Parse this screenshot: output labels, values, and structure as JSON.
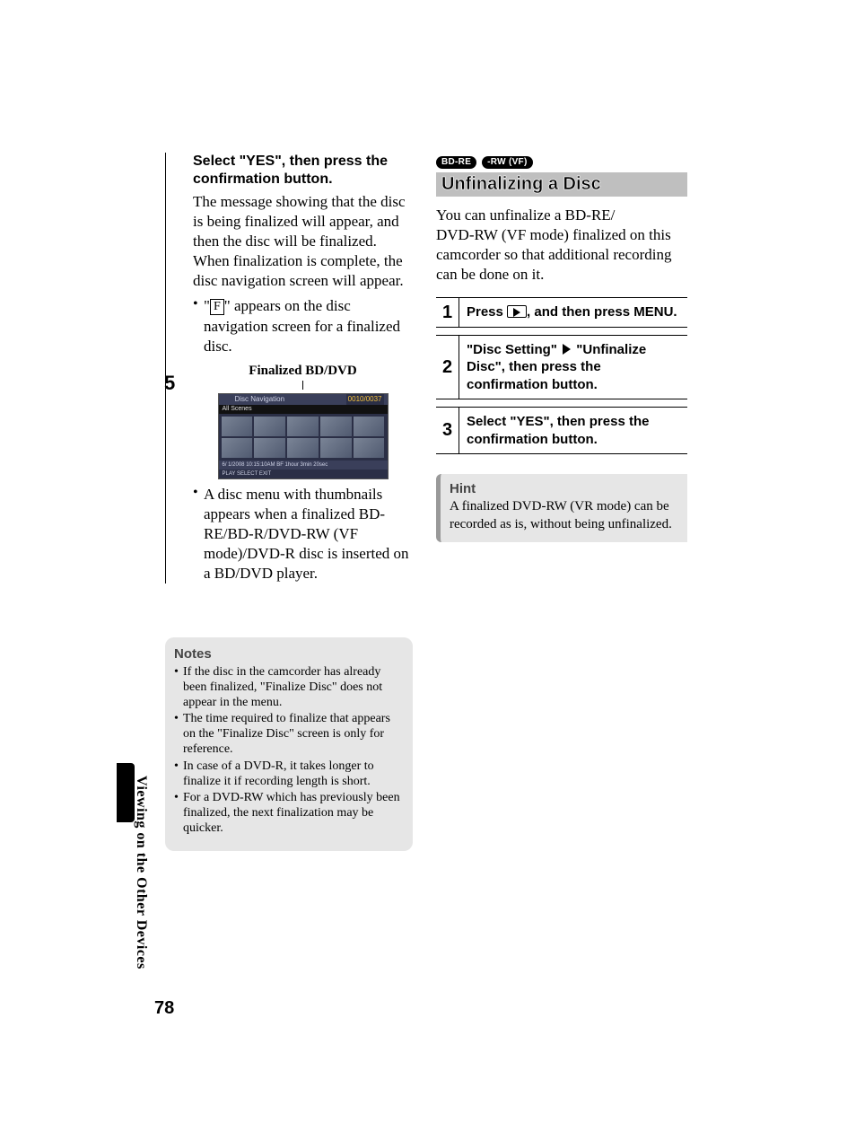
{
  "page": {
    "number": "78",
    "section_label": "Viewing on the Other Devices"
  },
  "left": {
    "step_number": "5",
    "lead": "Select \"YES\", then press the confirmation button.",
    "para": "The message showing that the disc is being finalized will appear, and then the disc will be finalized. When finalization is complete, the disc navigation screen will appear.",
    "bullet1_pre": "\"",
    "bullet1_glyph": "F",
    "bullet1_post": "\" appears on the disc navigation screen for a finalized disc.",
    "fig_caption": "Finalized BD/DVD",
    "bullet2": "A disc menu with thumbnails appears when a finalized BD-RE/BD-R/DVD-RW (VF mode)/DVD-R disc is inserted on a BD/DVD player.",
    "nav": {
      "title": "Disc  Navigation",
      "scenes": "All Scenes",
      "count": "0010/0037",
      "foot1": "6/ 1/2008 10:15:10AM   BF   1hour 3min 20sec",
      "foot2": "PLAY   SELECT   EXIT"
    }
  },
  "notes": {
    "title": "Notes",
    "items": [
      "If the disc in the camcorder has already been finalized, \"Finalize Disc\" does not appear in the menu.",
      "The time required to finalize that appears on the \"Finalize Disc\" screen is only for reference.",
      "In case of a DVD-R, it takes longer to finalize it if recording length is short.",
      "For a DVD-RW which has previously been finalized, the next finalization may be quicker."
    ]
  },
  "right": {
    "badges": [
      "BD-RE",
      "-RW (VF)"
    ],
    "heading": "Unfinalizing a Disc",
    "intro": "You can unfinalize a BD-RE/\nDVD-RW (VF mode) finalized on this camcorder so that additional recording can be done on it.",
    "steps": [
      {
        "n": "1",
        "pre": "Press ",
        "mid": ", and then press ",
        "post": "MENU."
      },
      {
        "n": "2",
        "a": "\"Disc Setting\"",
        "b": "\"Unfinalize Disc\", then press the confirmation button."
      },
      {
        "n": "3",
        "text": "Select \"YES\", then press the confirmation button."
      }
    ],
    "hint": {
      "title": "Hint",
      "body": "A finalized DVD-RW (VR mode) can be recorded as is, without being unfinalized."
    }
  },
  "colors": {
    "grey_box": "#e6e6e6",
    "section_bar": "#bfbfbf",
    "nav_bg": "#2b2f46"
  }
}
